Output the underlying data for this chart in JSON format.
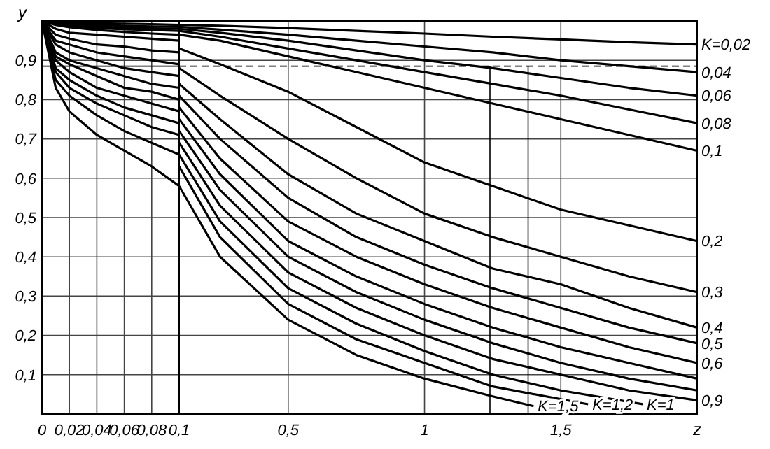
{
  "chart_data": [
    {
      "type": "line",
      "ylabel": "y",
      "x": [
        0,
        0.01,
        0.02,
        0.04,
        0.06,
        0.08,
        0.1
      ],
      "xlim": [
        0,
        0.1
      ],
      "ylim": [
        0,
        1
      ],
      "xticks": [
        {
          "value": 0,
          "label": "0"
        },
        {
          "value": 0.02,
          "label": "0,02"
        },
        {
          "value": 0.04,
          "label": "0,04"
        },
        {
          "value": 0.06,
          "label": "0,06"
        },
        {
          "value": 0.08,
          "label": "0,08"
        },
        {
          "value": 0.1,
          "label": "0,1"
        }
      ],
      "yticks": [
        {
          "value": 0.1,
          "label": "0,1"
        },
        {
          "value": 0.2,
          "label": "0,2"
        },
        {
          "value": 0.3,
          "label": "0,3"
        },
        {
          "value": 0.4,
          "label": "0,4"
        },
        {
          "value": 0.5,
          "label": "0,5"
        },
        {
          "value": 0.6,
          "label": "0,6"
        },
        {
          "value": 0.7,
          "label": "0,7"
        },
        {
          "value": 0.8,
          "label": "0,8"
        },
        {
          "value": 0.9,
          "label": "0,9"
        }
      ],
      "grid": true,
      "marker": "none",
      "line_style": "solid",
      "ref_lines": [
        {
          "axis": "y",
          "value": 0.885,
          "color": "#000000",
          "line_style": "solid"
        }
      ],
      "series": [
        {
          "color": "#000000",
          "values": [
            1,
            0.998,
            0.996,
            0.994,
            0.993,
            0.992,
            0.99
          ]
        },
        {
          "color": "#000000",
          "values": [
            1,
            0.996,
            0.993,
            0.99,
            0.988,
            0.986,
            0.985
          ]
        },
        {
          "color": "#000000",
          "values": [
            1,
            0.994,
            0.99,
            0.986,
            0.983,
            0.981,
            0.98
          ]
        },
        {
          "color": "#000000",
          "values": [
            1,
            0.992,
            0.987,
            0.982,
            0.979,
            0.977,
            0.975
          ]
        },
        {
          "color": "#000000",
          "values": [
            1,
            0.99,
            0.984,
            0.977,
            0.972,
            0.968,
            0.965
          ]
        },
        {
          "color": "#000000",
          "values": [
            1,
            0.98,
            0.97,
            0.965,
            0.96,
            0.955,
            0.95
          ]
        },
        {
          "color": "#000000",
          "values": [
            1,
            0.965,
            0.955,
            0.94,
            0.935,
            0.925,
            0.92
          ]
        },
        {
          "color": "#000000",
          "values": [
            1,
            0.95,
            0.94,
            0.92,
            0.91,
            0.9,
            0.89
          ]
        },
        {
          "color": "#000000",
          "values": [
            1,
            0.94,
            0.92,
            0.9,
            0.88,
            0.87,
            0.86
          ]
        },
        {
          "color": "#000000",
          "values": [
            1,
            0.92,
            0.9,
            0.88,
            0.86,
            0.84,
            0.83
          ]
        },
        {
          "color": "#000000",
          "values": [
            1,
            0.91,
            0.89,
            0.86,
            0.83,
            0.82,
            0.8
          ]
        },
        {
          "color": "#000000",
          "values": [
            1,
            0.9,
            0.87,
            0.83,
            0.81,
            0.79,
            0.77
          ]
        },
        {
          "color": "#000000",
          "values": [
            1,
            0.88,
            0.85,
            0.81,
            0.78,
            0.76,
            0.74
          ]
        },
        {
          "color": "#000000",
          "values": [
            1,
            0.87,
            0.83,
            0.79,
            0.76,
            0.73,
            0.71
          ]
        },
        {
          "color": "#000000",
          "values": [
            1,
            0.85,
            0.81,
            0.76,
            0.72,
            0.69,
            0.66
          ]
        },
        {
          "color": "#000000",
          "values": [
            1,
            0.83,
            0.77,
            0.71,
            0.67,
            0.63,
            0.58
          ]
        }
      ]
    },
    {
      "type": "line",
      "xlabel": "z",
      "x": [
        0.1,
        0.25,
        0.5,
        0.75,
        1,
        1.25,
        1.5,
        1.75,
        2
      ],
      "xlim": [
        0.1,
        2
      ],
      "ylim": [
        0,
        1
      ],
      "xticks": [
        {
          "value": 0.5,
          "label": "0,5"
        },
        1,
        {
          "value": 1.5,
          "label": "1,5"
        }
      ],
      "yticks": [
        0.1,
        0.2,
        0.3,
        0.4,
        0.5,
        0.6,
        0.7,
        0.8,
        0.9
      ],
      "tick_labels": "x",
      "grid": true,
      "marker": "none",
      "line_style": "solid",
      "ref_lines": [
        {
          "axis": "x",
          "value": 1.24,
          "color": "#000000",
          "line_style": "solid"
        },
        {
          "axis": "x",
          "value": 1.38,
          "color": "#000000",
          "line_style": "solid"
        },
        {
          "axis": "y",
          "value": 0.885,
          "color": "#000000",
          "line_style": "dashed"
        }
      ],
      "series": [
        {
          "name": "K=0,02",
          "color": "#000000",
          "values": [
            0.99,
            0.988,
            0.982,
            0.975,
            0.968,
            0.96,
            0.953,
            0.946,
            0.94
          ]
        },
        {
          "name": "0,04",
          "color": "#000000",
          "values": [
            0.985,
            0.978,
            0.965,
            0.95,
            0.935,
            0.92,
            0.9,
            0.885,
            0.87
          ]
        },
        {
          "name": "0,06",
          "color": "#000000",
          "values": [
            0.98,
            0.97,
            0.95,
            0.925,
            0.9,
            0.88,
            0.855,
            0.83,
            0.81
          ]
        },
        {
          "name": "0,08",
          "color": "#000000",
          "values": [
            0.975,
            0.96,
            0.93,
            0.9,
            0.87,
            0.84,
            0.81,
            0.775,
            0.74
          ]
        },
        {
          "name": "0,1",
          "color": "#000000",
          "values": [
            0.965,
            0.95,
            0.91,
            0.87,
            0.83,
            0.79,
            0.75,
            0.71,
            0.67
          ]
        },
        {
          "name": "0,2",
          "color": "#000000",
          "values": [
            0.93,
            0.89,
            0.82,
            0.73,
            0.64,
            0.58,
            0.52,
            0.48,
            0.44
          ]
        },
        {
          "name": "0,3",
          "color": "#000000",
          "values": [
            0.88,
            0.81,
            0.7,
            0.6,
            0.51,
            0.45,
            0.4,
            0.35,
            0.31
          ]
        },
        {
          "name": "0,4",
          "color": "#000000",
          "values": [
            0.84,
            0.75,
            0.61,
            0.51,
            0.44,
            0.37,
            0.33,
            0.27,
            0.22
          ]
        },
        {
          "name": "0,5",
          "color": "#000000",
          "values": [
            0.81,
            0.7,
            0.55,
            0.45,
            0.38,
            0.32,
            0.27,
            0.22,
            0.18
          ]
        },
        {
          "name": "0,6",
          "color": "#000000",
          "values": [
            0.78,
            0.65,
            0.49,
            0.4,
            0.33,
            0.27,
            0.22,
            0.17,
            0.13
          ]
        },
        {
          "color": "#000000",
          "values": [
            0.75,
            0.61,
            0.44,
            0.35,
            0.28,
            0.22,
            0.17,
            0.13,
            0.09
          ]
        },
        {
          "color": "#000000",
          "values": [
            0.72,
            0.57,
            0.4,
            0.31,
            0.24,
            0.18,
            0.13,
            0.09,
            0.06
          ]
        },
        {
          "name": "0,9",
          "color": "#000000",
          "values": [
            0.69,
            0.53,
            0.36,
            0.27,
            0.2,
            0.14,
            0.1,
            0.06,
            0.035
          ]
        },
        {
          "name": "K=1",
          "color": "#000000",
          "x": [
            0.1,
            0.25,
            0.5,
            0.75,
            1,
            1.25,
            1.5,
            1.8
          ],
          "values": [
            0.66,
            0.49,
            0.32,
            0.23,
            0.16,
            0.1,
            0.06,
            0.025
          ]
        },
        {
          "name": "K=1,2",
          "color": "#000000",
          "x": [
            0.1,
            0.25,
            0.5,
            0.75,
            1,
            1.25,
            1.6
          ],
          "values": [
            0.63,
            0.45,
            0.28,
            0.19,
            0.13,
            0.07,
            0.025
          ]
        },
        {
          "name": "K=1,5",
          "color": "#000000",
          "x": [
            0.1,
            0.25,
            0.5,
            0.75,
            1,
            1.25,
            1.4
          ],
          "values": [
            0.58,
            0.4,
            0.24,
            0.15,
            0.09,
            0.045,
            0.02
          ]
        }
      ]
    }
  ]
}
